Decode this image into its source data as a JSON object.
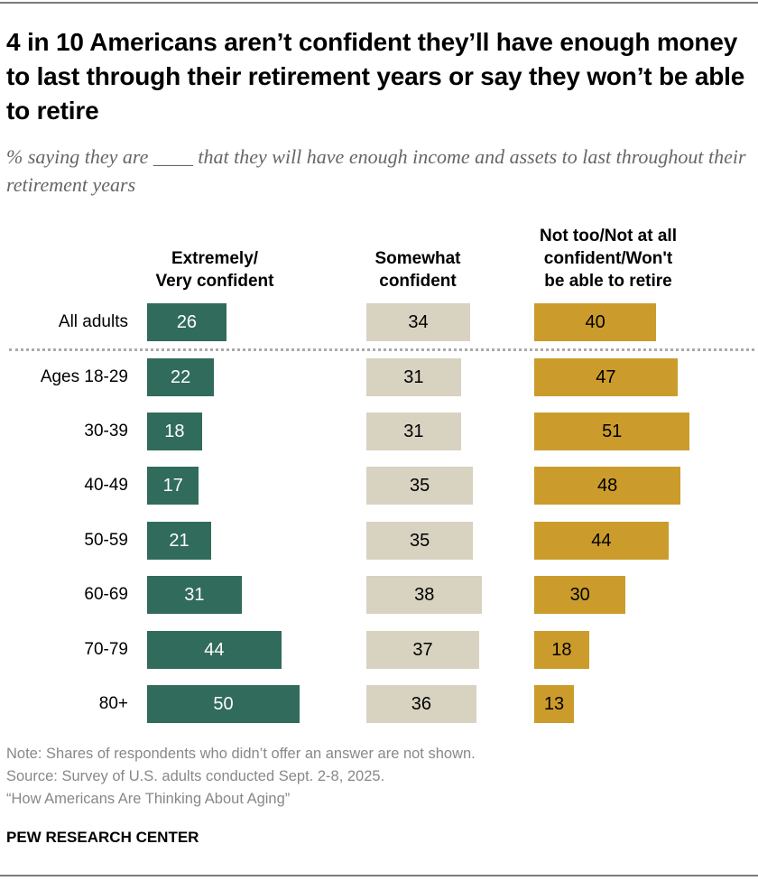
{
  "title": "4 in 10 Americans aren’t confident they’ll have enough money to last through their retirement years or say they won’t be able to retire",
  "subtitle": "% saying they are ____ that they will have enough income and assets to last throughout their retirement years",
  "chart_data": {
    "type": "bar",
    "categories": [
      "All adults",
      "Ages 18-29",
      "30-39",
      "40-49",
      "50-59",
      "60-69",
      "70-79",
      "80+"
    ],
    "series": [
      {
        "name": "Extremely/ Very confident",
        "color": "#316b5c",
        "text_color": "#ffffff",
        "values": [
          26,
          22,
          18,
          17,
          21,
          31,
          44,
          50
        ]
      },
      {
        "name": "Somewhat confident",
        "color": "#d8d2c1",
        "text_color": "#000000",
        "values": [
          34,
          31,
          31,
          35,
          35,
          38,
          37,
          36
        ]
      },
      {
        "name": "Not too/Not at all confident/Won't be able to retire",
        "color": "#cb9c2b",
        "text_color": "#000000",
        "values": [
          40,
          47,
          51,
          48,
          44,
          30,
          18,
          13
        ]
      }
    ],
    "headers": [
      [
        "Extremely/",
        "Very confident"
      ],
      [
        "Somewhat",
        "confident"
      ],
      [
        "Not too/Not at all",
        "confident/Won't",
        "be able to retire"
      ]
    ],
    "grid": false,
    "legend": "column headers"
  },
  "notes": {
    "note": "Note: Shares of respondents who didn’t offer an answer are not shown.",
    "source": "Source: Survey of U.S. adults conducted Sept. 2-8, 2025.",
    "report": "“How Americans Are Thinking About Aging”"
  },
  "brand": "PEW RESEARCH CENTER"
}
